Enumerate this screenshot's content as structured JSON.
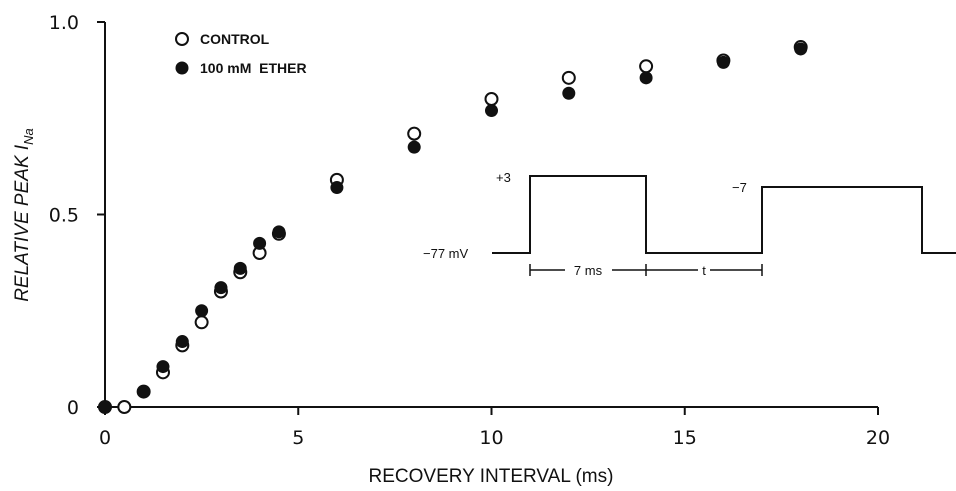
{
  "chart_data": {
    "type": "scatter",
    "xlabel": "RECOVERY INTERVAL (ms)",
    "ylabel_main": "RELATIVE PEAK I",
    "ylabel_sub": "Na",
    "xlim": [
      0,
      22
    ],
    "ylim": [
      0,
      1.0
    ],
    "xticks": [
      0,
      5,
      10,
      15,
      20
    ],
    "yticks": [
      {
        "value": 0,
        "label": "0"
      },
      {
        "value": 0.5,
        "label": "0.5"
      },
      {
        "value": 1.0,
        "label": "1.0"
      }
    ],
    "legend_position": "top-left",
    "series": [
      {
        "name": "CONTROL",
        "marker": "open-circle",
        "x": [
          0,
          0.5,
          1,
          1.5,
          2,
          2.5,
          3,
          3.5,
          4,
          4.5,
          6,
          8,
          10,
          12,
          14,
          16,
          18
        ],
        "y": [
          0,
          0,
          0.04,
          0.09,
          0.16,
          0.22,
          0.3,
          0.35,
          0.4,
          0.45,
          0.59,
          0.71,
          0.8,
          0.855,
          0.885,
          0.9,
          0.935
        ]
      },
      {
        "name": "100 mM  ETHER",
        "marker": "filled-circle",
        "x": [
          0,
          1,
          1.5,
          2,
          2.5,
          3,
          3.5,
          4,
          4.5,
          6,
          8,
          10,
          12,
          14,
          16,
          18
        ],
        "y": [
          0,
          0.04,
          0.105,
          0.17,
          0.25,
          0.31,
          0.36,
          0.425,
          0.455,
          0.57,
          0.675,
          0.77,
          0.815,
          0.855,
          0.895,
          0.93
        ]
      }
    ],
    "inset": {
      "description_labels": {
        "level_high1": "+3",
        "level_high2": "−7",
        "holding": "−77 mV",
        "pulse_duration": "7 ms",
        "interval": "t"
      }
    }
  }
}
